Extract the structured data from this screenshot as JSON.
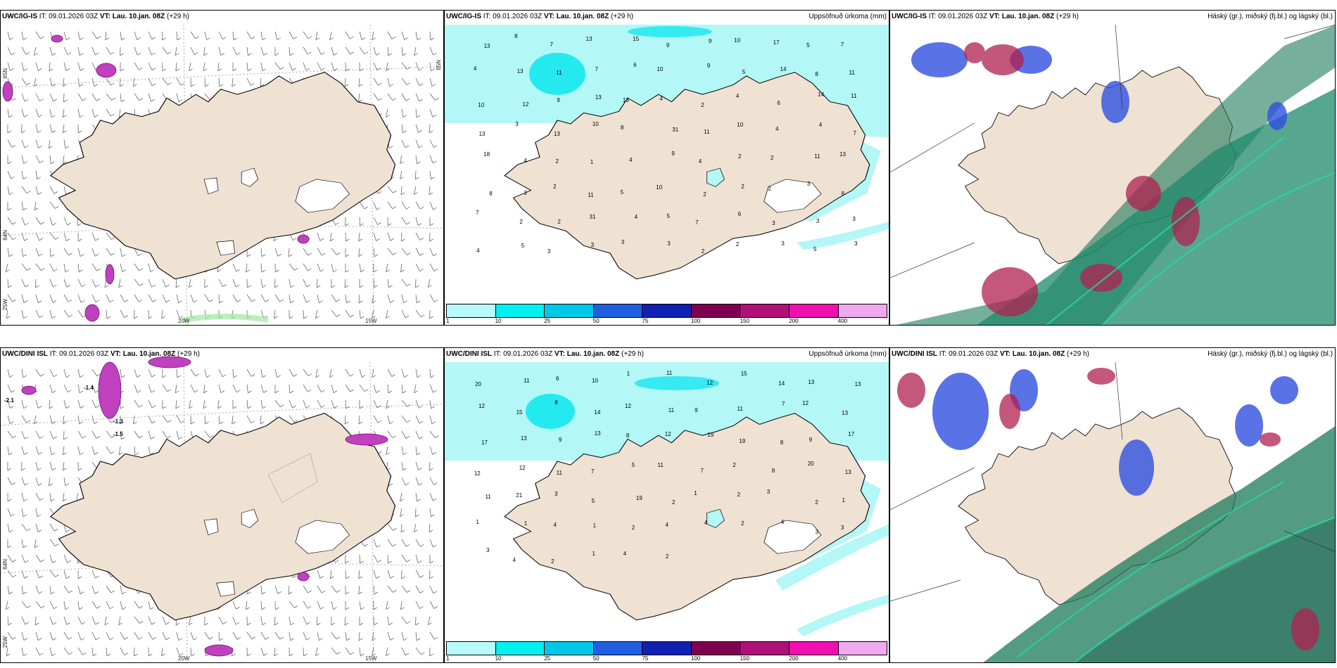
{
  "colors": {
    "land": "#efe2d3",
    "coast": "#000000",
    "glacier": "#ffffff",
    "precip_light": "#b3f7f7",
    "precip_mid": "#00e6ee",
    "precip_dark": "#00c8e6",
    "sea_graticule": "#999999"
  },
  "rows": [
    {
      "panels": [
        {
          "type": "wind",
          "model": "UWC/IG-IS",
          "it_label": "IT:",
          "it": "09.01.2026 03Z",
          "vt_label": "VT:",
          "vt": "Lau. 10.jan. 08Z",
          "lead": "(+29 h)",
          "lat_labels": [
            "65N",
            "64N",
            "25W",
            "65N"
          ],
          "lon_labels": [
            "20W",
            "15W"
          ]
        },
        {
          "type": "precip",
          "model": "UWC/IG-IS",
          "it_label": "IT:",
          "it": "09.01.2026 03Z",
          "vt_label": "VT:",
          "vt": "Lau. 10.jan. 08Z",
          "lead": "(+29 h)",
          "right_title": "Uppsöfnuð úrkoma (mm)",
          "numbers": [
            "13",
            "8",
            "7",
            "13",
            "15",
            "9",
            "9",
            "10",
            "17",
            "5",
            "7",
            "4",
            "13",
            "11",
            "7",
            "6",
            "10",
            "9",
            "5",
            "14",
            "8",
            "11",
            "10",
            "12",
            "9",
            "13",
            "13",
            "4",
            "2",
            "4",
            "6",
            "14",
            "11",
            "13",
            "3",
            "13",
            "10",
            "8",
            "31",
            "11",
            "10",
            "4",
            "4",
            "7",
            "18",
            "4",
            "2",
            "1",
            "4",
            "9",
            "4",
            "2",
            "2",
            "11",
            "13",
            "8",
            "3",
            "2",
            "11",
            "5",
            "10",
            "2",
            "2",
            "2",
            "3",
            "8",
            "7",
            "2",
            "2",
            "31",
            "4",
            "5",
            "7",
            "6",
            "3",
            "3",
            "3",
            "4",
            "5",
            "3",
            "3",
            "3",
            "3",
            "2",
            "2",
            "3",
            "5",
            "3"
          ]
        },
        {
          "type": "cloud",
          "model": "UWC/IG-IS",
          "it_label": "IT:",
          "it": "09.01.2026 03Z",
          "vt_label": "VT:",
          "vt": "Lau. 10.jan. 08Z",
          "lead": "(+29 h)",
          "right_title": "Háský (gr.), miðský (fj.bl.) og lágský (bl.)"
        }
      ]
    },
    {
      "panels": [
        {
          "type": "wind",
          "model": "UWC/DINI ISL",
          "it_label": "IT:",
          "it": "09.01.2026 03Z",
          "vt_label": "VT:",
          "vt": "Lau. 10.jan. 08Z",
          "lead": "(+29 h)",
          "lat_labels": [
            "64N",
            "25W"
          ],
          "lon_labels": [
            "20W",
            "15W"
          ],
          "values": [
            "-2.1",
            "-1.4",
            "-1.3",
            "-1.5"
          ]
        },
        {
          "type": "precip",
          "model": "UWC/DINI ISL",
          "it_label": "IT:",
          "it": "09.01.2026 03Z",
          "vt_label": "VT:",
          "vt": "Lau. 10.jan. 08Z",
          "lead": "(+29 h)",
          "right_title": "Uppsöfnuð úrkoma (mm)",
          "numbers": [
            "20",
            "11",
            "6",
            "10",
            "1",
            "11",
            "12",
            "15",
            "14",
            "13",
            "13",
            "12",
            "15",
            "8",
            "14",
            "12",
            "11",
            "9",
            "11",
            "7",
            "12",
            "13",
            "17",
            "13",
            "9",
            "13",
            "8",
            "12",
            "19",
            "19",
            "8",
            "9",
            "17",
            "12",
            "12",
            "11",
            "7",
            "5",
            "11",
            "7",
            "2",
            "8",
            "20",
            "13",
            "11",
            "21",
            "3",
            "5",
            "19",
            "2",
            "1",
            "2",
            "3",
            "2",
            "1",
            "1",
            "1",
            "4",
            "1",
            "2",
            "4",
            "4",
            "2",
            "4",
            "3",
            "3",
            "3",
            "4",
            "2",
            "1",
            "4",
            "2"
          ]
        },
        {
          "type": "cloud",
          "model": "UWC/DINI ISL",
          "it_label": "IT:",
          "it": "09.01.2026 03Z",
          "vt_label": "VT:",
          "vt": "Lau. 10.jan. 08Z",
          "lead": "(+29 h)",
          "right_title": "Háský (gr.), miðský (fj.bl.) og lágský (bl.)"
        }
      ]
    }
  ],
  "legend": {
    "labels": [
      "1",
      "10",
      "25",
      "50",
      "75",
      "100",
      "150",
      "200",
      "400"
    ],
    "colors": [
      "#b8fafa",
      "#00f0f0",
      "#00c8e8",
      "#2060e0",
      "#1020b0",
      "#800050",
      "#b0107a",
      "#f010b0",
      "#f0a8f0"
    ]
  }
}
